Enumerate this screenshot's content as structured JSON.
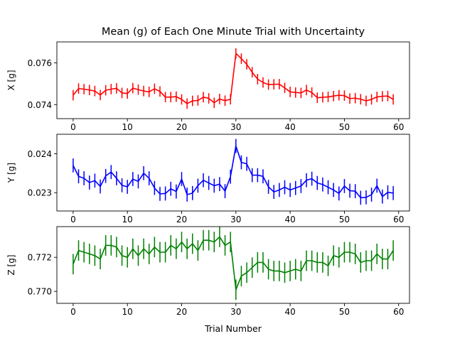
{
  "chart_data": {
    "title": "Mean (g) of Each One Minute Trial with Uncertainty",
    "xlabel": "Trial Number",
    "xlim": [
      -3,
      62
    ],
    "xticks": [
      0,
      10,
      20,
      30,
      40,
      50,
      60
    ],
    "panels": [
      {
        "type": "line",
        "ylabel": "X [g]",
        "color": "#ff0000",
        "ylim": [
          0.07333,
          0.077
        ],
        "yticks": [
          0.074,
          0.076
        ],
        "ytick_labels": [
          "0.074",
          "0.076"
        ],
        "x": [
          0,
          1,
          2,
          3,
          4,
          5,
          6,
          7,
          8,
          9,
          10,
          11,
          12,
          13,
          14,
          15,
          16,
          17,
          18,
          19,
          20,
          21,
          22,
          23,
          24,
          25,
          26,
          27,
          28,
          29,
          30,
          31,
          32,
          33,
          34,
          35,
          36,
          37,
          38,
          39,
          40,
          41,
          42,
          43,
          44,
          45,
          46,
          47,
          48,
          49,
          50,
          51,
          52,
          53,
          54,
          55,
          56,
          57,
          58,
          59
        ],
        "values": [
          0.07445,
          0.07477,
          0.07474,
          0.0747,
          0.07465,
          0.07446,
          0.07469,
          0.07474,
          0.07478,
          0.07456,
          0.07453,
          0.07479,
          0.07472,
          0.07465,
          0.07461,
          0.07476,
          0.07463,
          0.07436,
          0.07436,
          0.07438,
          0.07425,
          0.07405,
          0.07418,
          0.0742,
          0.07436,
          0.0743,
          0.07409,
          0.07427,
          0.07419,
          0.07426,
          0.07645,
          0.0762,
          0.07593,
          0.07555,
          0.07522,
          0.07506,
          0.07496,
          0.07497,
          0.07498,
          0.0748,
          0.07461,
          0.07458,
          0.07456,
          0.0747,
          0.07458,
          0.07433,
          0.07435,
          0.07437,
          0.07441,
          0.07445,
          0.07443,
          0.07429,
          0.07431,
          0.07426,
          0.07418,
          0.07425,
          0.07437,
          0.0744,
          0.07441,
          0.07425
        ],
        "error": 0.00025
      },
      {
        "type": "line",
        "ylabel": "Y [g]",
        "color": "#0000ff",
        "ylim": [
          0.02253,
          0.0245
        ],
        "yticks": [
          0.023,
          0.024
        ],
        "ytick_labels": [
          "0.023",
          "0.024"
        ],
        "x": [
          0,
          1,
          2,
          3,
          4,
          5,
          6,
          7,
          8,
          9,
          10,
          11,
          12,
          13,
          14,
          15,
          16,
          17,
          18,
          19,
          20,
          21,
          22,
          23,
          24,
          25,
          26,
          27,
          28,
          29,
          30,
          31,
          32,
          33,
          34,
          35,
          36,
          37,
          38,
          39,
          40,
          41,
          42,
          43,
          44,
          45,
          46,
          47,
          48,
          49,
          50,
          51,
          52,
          53,
          54,
          55,
          56,
          57,
          58,
          59
        ],
        "values": [
          0.0237,
          0.02342,
          0.02337,
          0.02326,
          0.02331,
          0.02316,
          0.02343,
          0.02353,
          0.02337,
          0.02319,
          0.02315,
          0.02335,
          0.02329,
          0.0235,
          0.02337,
          0.02312,
          0.02297,
          0.02298,
          0.0231,
          0.02303,
          0.02335,
          0.02295,
          0.02299,
          0.02318,
          0.02332,
          0.02325,
          0.02318,
          0.02322,
          0.02304,
          0.02341,
          0.0242,
          0.02378,
          0.02374,
          0.02345,
          0.02345,
          0.02342,
          0.02315,
          0.02302,
          0.02307,
          0.02314,
          0.02307,
          0.02312,
          0.02317,
          0.02332,
          0.02336,
          0.02325,
          0.02321,
          0.02314,
          0.02307,
          0.02298,
          0.02317,
          0.02305,
          0.02304,
          0.02287,
          0.02288,
          0.02295,
          0.02318,
          0.0229,
          0.02301,
          0.02299
        ],
        "error": 0.00018
      },
      {
        "type": "line",
        "ylabel": "Z [g]",
        "color": "#008000",
        "ylim": [
          0.7693,
          0.7738
        ],
        "yticks": [
          0.77,
          0.772
        ],
        "ytick_labels": [
          "0.770",
          "0.772"
        ],
        "x": [
          0,
          1,
          2,
          3,
          4,
          5,
          6,
          7,
          8,
          9,
          10,
          11,
          12,
          13,
          14,
          15,
          16,
          17,
          18,
          19,
          20,
          21,
          22,
          23,
          24,
          25,
          26,
          27,
          28,
          29,
          30,
          31,
          32,
          33,
          34,
          35,
          36,
          37,
          38,
          39,
          40,
          41,
          42,
          43,
          44,
          45,
          46,
          47,
          48,
          49,
          50,
          51,
          52,
          53,
          54,
          55,
          56,
          57,
          58,
          59
        ],
        "values": [
          0.7716,
          0.7724,
          0.7723,
          0.7722,
          0.7721,
          0.7719,
          0.7727,
          0.7727,
          0.7726,
          0.7721,
          0.772,
          0.7725,
          0.7721,
          0.7725,
          0.7722,
          0.7726,
          0.7723,
          0.7723,
          0.7727,
          0.7725,
          0.7729,
          0.7725,
          0.7728,
          0.7724,
          0.773,
          0.773,
          0.7729,
          0.7732,
          0.7727,
          0.7729,
          0.7701,
          0.7709,
          0.7711,
          0.7714,
          0.7717,
          0.7717,
          0.7713,
          0.7712,
          0.7712,
          0.7711,
          0.7712,
          0.7713,
          0.7712,
          0.7718,
          0.7718,
          0.7717,
          0.7717,
          0.7715,
          0.7721,
          0.772,
          0.7723,
          0.7723,
          0.7722,
          0.7717,
          0.7718,
          0.7718,
          0.7722,
          0.7719,
          0.7719,
          0.7724
        ],
        "error": 0.0006
      }
    ]
  }
}
